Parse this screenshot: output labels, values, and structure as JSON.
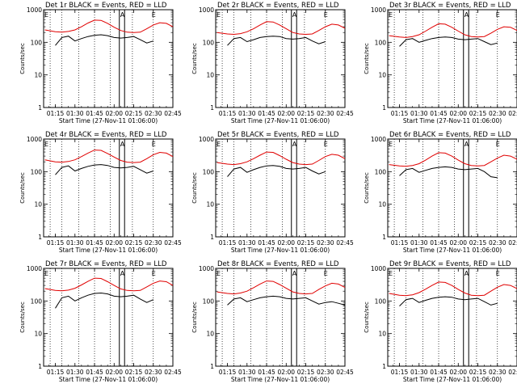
{
  "colors": {
    "events": "#000000",
    "lld": "#e00000",
    "axis": "#000000",
    "background": "#ffffff"
  },
  "chart_data": [
    {
      "type": "line",
      "title": "Det 1r BLACK = Events, RED = LLD",
      "xlabel": "Start Time (27-Nov-11 01:06:00)",
      "ylabel": "Counts/sec",
      "xticks": [
        "01:15",
        "01:30",
        "01:45",
        "02:00",
        "02:15",
        "02:30",
        "02:45"
      ],
      "ylim": [
        1,
        1000
      ],
      "yscale": "log",
      "yticks": [
        "1",
        "10",
        "100",
        "1000"
      ],
      "markers": [
        "E",
        "A",
        "E"
      ],
      "series": [
        {
          "name": "Events",
          "color": "#000000",
          "x": [
            "01:15",
            "01:20",
            "01:25",
            "01:30",
            "01:35",
            "01:40",
            "01:45",
            "01:50",
            "01:55",
            "02:00",
            "02:05",
            "02:10",
            "02:15",
            "02:20",
            "02:25",
            "02:30"
          ],
          "y": [
            80,
            140,
            155,
            110,
            130,
            150,
            165,
            170,
            160,
            140,
            135,
            140,
            150,
            120,
            95,
            110
          ]
        },
        {
          "name": "LLD",
          "color": "#e00000",
          "x": [
            "01:07",
            "01:15",
            "01:20",
            "01:25",
            "01:30",
            "01:35",
            "01:40",
            "01:45",
            "01:50",
            "01:55",
            "02:00",
            "02:05",
            "02:10",
            "02:15",
            "02:20",
            "02:25",
            "02:30",
            "02:35",
            "02:40",
            "02:45"
          ],
          "y": [
            240,
            210,
            205,
            215,
            240,
            300,
            390,
            480,
            470,
            380,
            290,
            230,
            205,
            200,
            205,
            260,
            340,
            400,
            380,
            300
          ]
        }
      ]
    },
    {
      "type": "line",
      "title": "Det 2r BLACK = Events, RED = LLD",
      "xlabel": "Start Time (27-Nov-11 01:06:00)",
      "ylabel": "Counts/sec",
      "xticks": [
        "01:15",
        "01:30",
        "01:45",
        "02:00",
        "02:15",
        "02:30",
        "02:45"
      ],
      "ylim": [
        1,
        1000
      ],
      "yscale": "log",
      "yticks": [
        "1",
        "10",
        "100",
        "1000"
      ],
      "markers": [
        "E",
        "A",
        "E"
      ],
      "series": [
        {
          "name": "Events",
          "color": "#000000",
          "x": [
            "01:15",
            "01:20",
            "01:25",
            "01:30",
            "01:35",
            "01:40",
            "01:45",
            "01:50",
            "01:55",
            "02:00",
            "02:05",
            "02:10",
            "02:15",
            "02:20",
            "02:25",
            "02:30"
          ],
          "y": [
            80,
            130,
            140,
            105,
            120,
            140,
            150,
            155,
            150,
            130,
            125,
            130,
            140,
            110,
            90,
            105
          ]
        },
        {
          "name": "LLD",
          "color": "#e00000",
          "x": [
            "01:07",
            "01:15",
            "01:20",
            "01:25",
            "01:30",
            "01:35",
            "01:40",
            "01:45",
            "01:50",
            "01:55",
            "02:00",
            "02:05",
            "02:10",
            "02:15",
            "02:20",
            "02:25",
            "02:30",
            "02:35",
            "02:40",
            "02:45"
          ],
          "y": [
            200,
            180,
            175,
            185,
            210,
            260,
            340,
            430,
            420,
            340,
            260,
            200,
            180,
            175,
            180,
            230,
            300,
            360,
            340,
            270
          ]
        }
      ]
    },
    {
      "type": "line",
      "title": "Det 3r BLACK = Events, RED = LLD",
      "xlabel": "Start Time (27-Nov-11 01:06:00)",
      "ylabel": "Counts/sec",
      "xticks": [
        "01:15",
        "01:30",
        "01:45",
        "02:00",
        "02:15",
        "02:30",
        "02:45"
      ],
      "ylim": [
        1,
        1000
      ],
      "yscale": "log",
      "yticks": [
        "1",
        "10",
        "100",
        "1000"
      ],
      "markers": [
        "E",
        "A",
        "E"
      ],
      "series": [
        {
          "name": "Events",
          "color": "#000000",
          "x": [
            "01:15",
            "01:20",
            "01:25",
            "01:30",
            "01:35",
            "01:40",
            "01:45",
            "01:50",
            "01:55",
            "02:00",
            "02:05",
            "02:10",
            "02:15",
            "02:20",
            "02:25",
            "02:30"
          ],
          "y": [
            75,
            120,
            130,
            100,
            115,
            130,
            140,
            145,
            140,
            125,
            120,
            125,
            130,
            105,
            85,
            95
          ]
        },
        {
          "name": "LLD",
          "color": "#e00000",
          "x": [
            "01:07",
            "01:15",
            "01:20",
            "01:25",
            "01:30",
            "01:35",
            "01:40",
            "01:45",
            "01:50",
            "01:55",
            "02:00",
            "02:05",
            "02:10",
            "02:15",
            "02:20",
            "02:25",
            "02:30",
            "02:35",
            "02:40",
            "02:45"
          ],
          "y": [
            160,
            145,
            140,
            150,
            170,
            220,
            290,
            370,
            360,
            290,
            220,
            170,
            150,
            145,
            150,
            190,
            250,
            300,
            290,
            230
          ]
        }
      ]
    },
    {
      "type": "line",
      "title": "Det 4r BLACK = Events, RED = LLD",
      "xlabel": "Start Time (27-Nov-11 01:06:00)",
      "ylabel": "Counts/sec",
      "xticks": [
        "01:15",
        "01:30",
        "01:45",
        "02:00",
        "02:15",
        "02:30",
        "02:45"
      ],
      "ylim": [
        1,
        1000
      ],
      "yscale": "log",
      "yticks": [
        "1",
        "10",
        "100",
        "1000"
      ],
      "markers": [
        "E",
        "A",
        "E"
      ],
      "series": [
        {
          "name": "Events",
          "color": "#000000",
          "x": [
            "01:15",
            "01:20",
            "01:25",
            "01:30",
            "01:35",
            "01:40",
            "01:45",
            "01:50",
            "01:55",
            "02:00",
            "02:05",
            "02:10",
            "02:15",
            "02:20",
            "02:25",
            "02:30"
          ],
          "y": [
            80,
            135,
            150,
            105,
            125,
            145,
            160,
            165,
            155,
            135,
            130,
            135,
            145,
            115,
            90,
            105
          ]
        },
        {
          "name": "LLD",
          "color": "#e00000",
          "x": [
            "01:07",
            "01:15",
            "01:20",
            "01:25",
            "01:30",
            "01:35",
            "01:40",
            "01:45",
            "01:50",
            "01:55",
            "02:00",
            "02:05",
            "02:10",
            "02:15",
            "02:20",
            "02:25",
            "02:30",
            "02:35",
            "02:40",
            "02:45"
          ],
          "y": [
            230,
            200,
            195,
            205,
            230,
            290,
            370,
            460,
            450,
            360,
            280,
            220,
            195,
            190,
            195,
            250,
            330,
            390,
            370,
            290
          ]
        }
      ]
    },
    {
      "type": "line",
      "title": "Det 5r BLACK = Events, RED = LLD",
      "xlabel": "Start Time (27-Nov-11 01:06:00)",
      "ylabel": "Counts/sec",
      "xticks": [
        "01:15",
        "01:30",
        "01:45",
        "02:00",
        "02:15",
        "02:30",
        "02:45"
      ],
      "ylim": [
        1,
        1000
      ],
      "yscale": "log",
      "yticks": [
        "1",
        "10",
        "100",
        "1000"
      ],
      "markers": [
        "E",
        "A",
        "E"
      ],
      "series": [
        {
          "name": "Events",
          "color": "#000000",
          "x": [
            "01:15",
            "01:20",
            "01:25",
            "01:30",
            "01:35",
            "01:40",
            "01:45",
            "01:50",
            "01:55",
            "02:00",
            "02:05",
            "02:10",
            "02:15",
            "02:20",
            "02:25",
            "02:30"
          ],
          "y": [
            70,
            120,
            135,
            95,
            115,
            135,
            150,
            155,
            145,
            125,
            120,
            125,
            135,
            105,
            85,
            100
          ]
        },
        {
          "name": "LLD",
          "color": "#e00000",
          "x": [
            "01:07",
            "01:15",
            "01:20",
            "01:25",
            "01:30",
            "01:35",
            "01:40",
            "01:45",
            "01:50",
            "01:55",
            "02:00",
            "02:05",
            "02:10",
            "02:15",
            "02:20",
            "02:25",
            "02:30",
            "02:35",
            "02:40",
            "02:45"
          ],
          "y": [
            190,
            170,
            165,
            175,
            200,
            250,
            320,
            400,
            390,
            310,
            240,
            190,
            170,
            165,
            170,
            220,
            290,
            340,
            320,
            250
          ]
        }
      ]
    },
    {
      "type": "line",
      "title": "Det 6r BLACK = Events, RED = LLD",
      "xlabel": "Start Time (27-Nov-11 01:06:00)",
      "ylabel": "Counts/sec",
      "xticks": [
        "01:15",
        "01:30",
        "01:45",
        "02:00",
        "02:15",
        "02:30",
        "02:45"
      ],
      "ylim": [
        1,
        1000
      ],
      "yscale": "log",
      "yticks": [
        "1",
        "10",
        "100",
        "1000"
      ],
      "markers": [
        "E",
        "A",
        "E"
      ],
      "series": [
        {
          "name": "Events",
          "color": "#000000",
          "x": [
            "01:15",
            "01:20",
            "01:25",
            "01:30",
            "01:35",
            "01:40",
            "01:45",
            "01:50",
            "01:55",
            "02:00",
            "02:05",
            "02:10",
            "02:15",
            "02:20",
            "02:25",
            "02:30"
          ],
          "y": [
            75,
            115,
            125,
            95,
            110,
            125,
            135,
            140,
            135,
            120,
            115,
            120,
            125,
            100,
            70,
            65
          ]
        },
        {
          "name": "LLD",
          "color": "#e00000",
          "x": [
            "01:07",
            "01:15",
            "01:20",
            "01:25",
            "01:30",
            "01:35",
            "01:40",
            "01:45",
            "01:50",
            "01:55",
            "02:00",
            "02:05",
            "02:10",
            "02:15",
            "02:20",
            "02:25",
            "02:30",
            "02:35",
            "02:40",
            "02:45"
          ],
          "y": [
            165,
            150,
            145,
            155,
            175,
            225,
            300,
            380,
            370,
            300,
            225,
            175,
            155,
            150,
            155,
            200,
            260,
            320,
            300,
            240
          ]
        }
      ]
    },
    {
      "type": "line",
      "title": "Det 7r BLACK = Events, RED = LLD",
      "xlabel": "Start Time (27-Nov-11 01:06:00)",
      "ylabel": "Counts/sec",
      "xticks": [
        "01:15",
        "01:30",
        "01:45",
        "02:00",
        "02:15",
        "02:30",
        "02:45"
      ],
      "ylim": [
        1,
        1000
      ],
      "yscale": "log",
      "yticks": [
        "1",
        "10",
        "100",
        "1000"
      ],
      "markers": [
        "E",
        "A",
        "E"
      ],
      "series": [
        {
          "name": "Events",
          "color": "#000000",
          "x": [
            "01:15",
            "01:20",
            "01:25",
            "01:30",
            "01:35",
            "01:40",
            "01:45",
            "01:50",
            "01:55",
            "02:00",
            "02:05",
            "02:10",
            "02:15",
            "02:20",
            "02:25",
            "02:30"
          ],
          "y": [
            60,
            125,
            140,
            100,
            125,
            150,
            170,
            175,
            165,
            140,
            135,
            140,
            150,
            115,
            90,
            110
          ]
        },
        {
          "name": "LLD",
          "color": "#e00000",
          "x": [
            "01:07",
            "01:15",
            "01:20",
            "01:25",
            "01:30",
            "01:35",
            "01:40",
            "01:45",
            "01:50",
            "01:55",
            "02:00",
            "02:05",
            "02:10",
            "02:15",
            "02:20",
            "02:25",
            "02:30",
            "02:35",
            "02:40",
            "02:45"
          ],
          "y": [
            240,
            210,
            205,
            215,
            245,
            310,
            400,
            500,
            490,
            390,
            300,
            235,
            210,
            205,
            210,
            270,
            350,
            410,
            390,
            300
          ]
        }
      ]
    },
    {
      "type": "line",
      "title": "Det 8r BLACK = Events, RED = LLD",
      "xlabel": "Start Time (27-Nov-11 01:06:00)",
      "ylabel": "Counts/sec",
      "xticks": [
        "01:15",
        "01:30",
        "01:45",
        "02:00",
        "02:15",
        "02:30",
        "02:45"
      ],
      "ylim": [
        1,
        1000
      ],
      "yscale": "log",
      "yticks": [
        "1",
        "10",
        "100",
        "1000"
      ],
      "markers": [
        "E",
        "A",
        "E"
      ],
      "series": [
        {
          "name": "Events",
          "color": "#000000",
          "x": [
            "01:15",
            "01:20",
            "01:25",
            "01:30",
            "01:35",
            "01:40",
            "01:45",
            "01:50",
            "01:55",
            "02:00",
            "02:05",
            "02:10",
            "02:15",
            "02:20",
            "02:25",
            "02:30",
            "02:35",
            "02:40",
            "02:45"
          ],
          "y": [
            75,
            115,
            125,
            95,
            110,
            125,
            135,
            140,
            135,
            120,
            115,
            120,
            125,
            100,
            80,
            90,
            95,
            85,
            75
          ]
        },
        {
          "name": "LLD",
          "color": "#e00000",
          "x": [
            "01:07",
            "01:15",
            "01:20",
            "01:25",
            "01:30",
            "01:35",
            "01:40",
            "01:45",
            "01:50",
            "01:55",
            "02:00",
            "02:05",
            "02:10",
            "02:15",
            "02:20",
            "02:25",
            "02:30",
            "02:35",
            "02:40",
            "02:45"
          ],
          "y": [
            190,
            170,
            165,
            175,
            200,
            255,
            330,
            410,
            400,
            320,
            245,
            190,
            170,
            165,
            170,
            225,
            290,
            350,
            330,
            260
          ]
        }
      ]
    },
    {
      "type": "line",
      "title": "Det 9r BLACK = Events, RED = LLD",
      "xlabel": "Start Time (27-Nov-11 01:06:00)",
      "ylabel": "Counts/sec",
      "xticks": [
        "01:15",
        "01:30",
        "01:45",
        "02:00",
        "02:15",
        "02:30",
        "02:45"
      ],
      "ylim": [
        1,
        1000
      ],
      "yscale": "log",
      "yticks": [
        "1",
        "10",
        "100",
        "1000"
      ],
      "markers": [
        "E",
        "A",
        "E"
      ],
      "series": [
        {
          "name": "Events",
          "color": "#000000",
          "x": [
            "01:15",
            "01:20",
            "01:25",
            "01:30",
            "01:35",
            "01:40",
            "01:45",
            "01:50",
            "01:55",
            "02:00",
            "02:05",
            "02:10",
            "02:15",
            "02:20",
            "02:25",
            "02:30"
          ],
          "y": [
            70,
            110,
            120,
            90,
            105,
            120,
            130,
            135,
            130,
            115,
            110,
            115,
            120,
            95,
            75,
            85
          ]
        },
        {
          "name": "LLD",
          "color": "#e00000",
          "x": [
            "01:07",
            "01:15",
            "01:20",
            "01:25",
            "01:30",
            "01:35",
            "01:40",
            "01:45",
            "01:50",
            "01:55",
            "02:00",
            "02:05",
            "02:10",
            "02:15",
            "02:20",
            "02:25",
            "02:30",
            "02:35",
            "02:40",
            "02:45"
          ],
          "y": [
            170,
            150,
            145,
            155,
            180,
            230,
            300,
            380,
            370,
            300,
            225,
            175,
            150,
            145,
            150,
            200,
            265,
            320,
            300,
            240
          ]
        }
      ]
    }
  ]
}
